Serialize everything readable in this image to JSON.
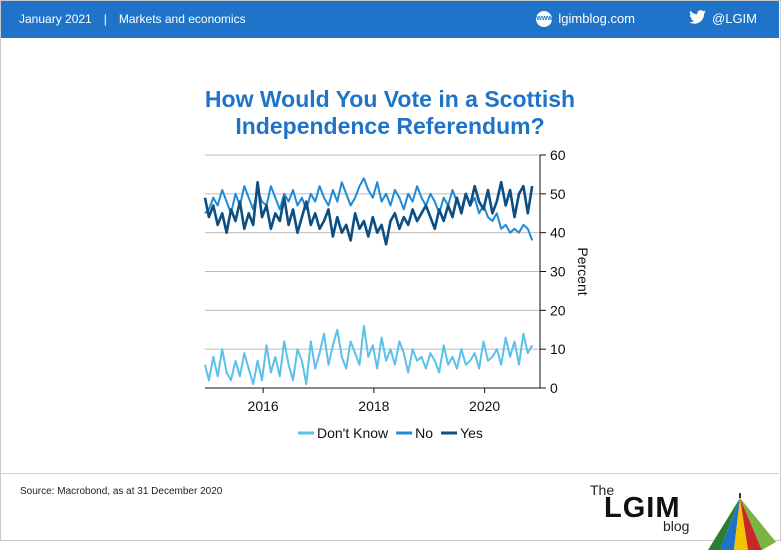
{
  "header": {
    "date": "January 2021",
    "separator": "|",
    "category": "Markets and economics",
    "site": "lgimblog.com",
    "site_icon": "www",
    "handle": "@LGIM"
  },
  "colors": {
    "header_bg": "#1f74c9",
    "dont_know": "#5bc0ea",
    "no": "#1f8ad8",
    "yes": "#0d4f82"
  },
  "chart_data": {
    "type": "line",
    "title": "How Would You Vote in a Scottish Independence Referendum?",
    "ylabel": "Percent",
    "ylim": [
      0,
      60
    ],
    "yticks": [
      "0",
      "10",
      "20",
      "30",
      "40",
      "50",
      "60"
    ],
    "xlim": [
      2014.95,
      2021.0
    ],
    "xticks": [
      {
        "label": "2016",
        "value": 2016.0
      },
      {
        "label": "2018",
        "value": 2018.0
      },
      {
        "label": "2020",
        "value": 2020.0
      }
    ],
    "grid": true,
    "legend_position": "bottom",
    "series": [
      {
        "name": "Don't Know",
        "color": "#5bc0ea",
        "x": [
          2014.95,
          2015.02,
          2015.1,
          2015.18,
          2015.26,
          2015.34,
          2015.42,
          2015.5,
          2015.58,
          2015.66,
          2015.74,
          2015.82,
          2015.9,
          2015.98,
          2016.06,
          2016.14,
          2016.22,
          2016.3,
          2016.38,
          2016.46,
          2016.54,
          2016.62,
          2016.7,
          2016.78,
          2016.86,
          2016.94,
          2017.02,
          2017.1,
          2017.18,
          2017.26,
          2017.34,
          2017.42,
          2017.5,
          2017.58,
          2017.66,
          2017.74,
          2017.82,
          2017.9,
          2017.98,
          2018.06,
          2018.14,
          2018.22,
          2018.3,
          2018.38,
          2018.46,
          2018.54,
          2018.62,
          2018.7,
          2018.78,
          2018.86,
          2018.94,
          2019.02,
          2019.1,
          2019.18,
          2019.26,
          2019.34,
          2019.42,
          2019.5,
          2019.58,
          2019.66,
          2019.74,
          2019.82,
          2019.9,
          2019.98,
          2020.06,
          2020.14,
          2020.22,
          2020.3,
          2020.38,
          2020.46,
          2020.54,
          2020.62,
          2020.7,
          2020.78,
          2020.86
        ],
        "values": [
          6,
          2,
          8,
          3,
          10,
          4,
          2,
          7,
          3,
          9,
          5,
          1,
          7,
          2,
          11,
          4,
          8,
          3,
          12,
          6,
          2,
          10,
          7,
          1,
          12,
          5,
          9,
          14,
          6,
          11,
          15,
          8,
          5,
          12,
          9,
          6,
          16,
          8,
          11,
          5,
          13,
          7,
          10,
          6,
          12,
          9,
          4,
          10,
          7,
          8,
          5,
          9,
          7,
          4,
          11,
          6,
          8,
          5,
          10,
          6,
          7,
          9,
          5,
          12,
          7,
          8,
          10,
          6,
          13,
          8,
          12,
          6,
          14,
          9,
          11
        ]
      },
      {
        "name": "No",
        "color": "#1f8ad8",
        "x": [
          2014.95,
          2015.02,
          2015.1,
          2015.18,
          2015.26,
          2015.34,
          2015.42,
          2015.5,
          2015.58,
          2015.66,
          2015.74,
          2015.82,
          2015.9,
          2015.98,
          2016.06,
          2016.14,
          2016.22,
          2016.3,
          2016.38,
          2016.46,
          2016.54,
          2016.62,
          2016.7,
          2016.78,
          2016.86,
          2016.94,
          2017.02,
          2017.1,
          2017.18,
          2017.26,
          2017.34,
          2017.42,
          2017.5,
          2017.58,
          2017.66,
          2017.74,
          2017.82,
          2017.9,
          2017.98,
          2018.06,
          2018.14,
          2018.22,
          2018.3,
          2018.38,
          2018.46,
          2018.54,
          2018.62,
          2018.7,
          2018.78,
          2018.86,
          2018.94,
          2019.02,
          2019.1,
          2019.18,
          2019.26,
          2019.34,
          2019.42,
          2019.5,
          2019.58,
          2019.66,
          2019.74,
          2019.82,
          2019.9,
          2019.98,
          2020.06,
          2020.14,
          2020.22,
          2020.3,
          2020.38,
          2020.46,
          2020.54,
          2020.62,
          2020.7,
          2020.78,
          2020.86
        ],
        "values": [
          45,
          46,
          49,
          47,
          51,
          48,
          45,
          50,
          47,
          52,
          49,
          46,
          51,
          48,
          47,
          52,
          49,
          46,
          50,
          48,
          51,
          47,
          49,
          46,
          50,
          48,
          52,
          49,
          47,
          51,
          48,
          53,
          50,
          47,
          49,
          52,
          54,
          51,
          49,
          53,
          48,
          50,
          47,
          51,
          49,
          46,
          50,
          48,
          52,
          49,
          47,
          50,
          48,
          45,
          49,
          47,
          51,
          48,
          46,
          50,
          47,
          49,
          45,
          47,
          44,
          43,
          45,
          41,
          42,
          40,
          41,
          40,
          42,
          41,
          38
        ]
      },
      {
        "name": "Yes",
        "color": "#0d4f82",
        "x": [
          2014.95,
          2015.02,
          2015.1,
          2015.18,
          2015.26,
          2015.34,
          2015.42,
          2015.5,
          2015.58,
          2015.66,
          2015.74,
          2015.82,
          2015.9,
          2015.98,
          2016.06,
          2016.14,
          2016.22,
          2016.3,
          2016.38,
          2016.46,
          2016.54,
          2016.62,
          2016.7,
          2016.78,
          2016.86,
          2016.94,
          2017.02,
          2017.1,
          2017.18,
          2017.26,
          2017.34,
          2017.42,
          2017.5,
          2017.58,
          2017.66,
          2017.74,
          2017.82,
          2017.9,
          2017.98,
          2018.06,
          2018.14,
          2018.22,
          2018.3,
          2018.38,
          2018.46,
          2018.54,
          2018.62,
          2018.7,
          2018.78,
          2018.86,
          2018.94,
          2019.02,
          2019.1,
          2019.18,
          2019.26,
          2019.34,
          2019.42,
          2019.5,
          2019.58,
          2019.66,
          2019.74,
          2019.82,
          2019.9,
          2019.98,
          2020.06,
          2020.14,
          2020.22,
          2020.3,
          2020.38,
          2020.46,
          2020.54,
          2020.62,
          2020.7,
          2020.78,
          2020.86
        ],
        "values": [
          49,
          44,
          47,
          42,
          45,
          40,
          46,
          43,
          48,
          41,
          45,
          42,
          53,
          44,
          47,
          41,
          45,
          43,
          49,
          42,
          46,
          40,
          44,
          48,
          42,
          45,
          41,
          43,
          46,
          39,
          44,
          40,
          42,
          38,
          45,
          41,
          43,
          39,
          44,
          40,
          42,
          37,
          43,
          45,
          41,
          44,
          42,
          46,
          43,
          45,
          47,
          44,
          41,
          46,
          43,
          47,
          44,
          49,
          45,
          50,
          47,
          52,
          48,
          46,
          51,
          45,
          48,
          53,
          47,
          51,
          44,
          50,
          52,
          45,
          52
        ]
      }
    ]
  },
  "footer": {
    "source": "Source: Macrobond, as at 31 December 2020",
    "logo_the": "The",
    "logo_name": "LGIM",
    "logo_blog": "blog"
  }
}
